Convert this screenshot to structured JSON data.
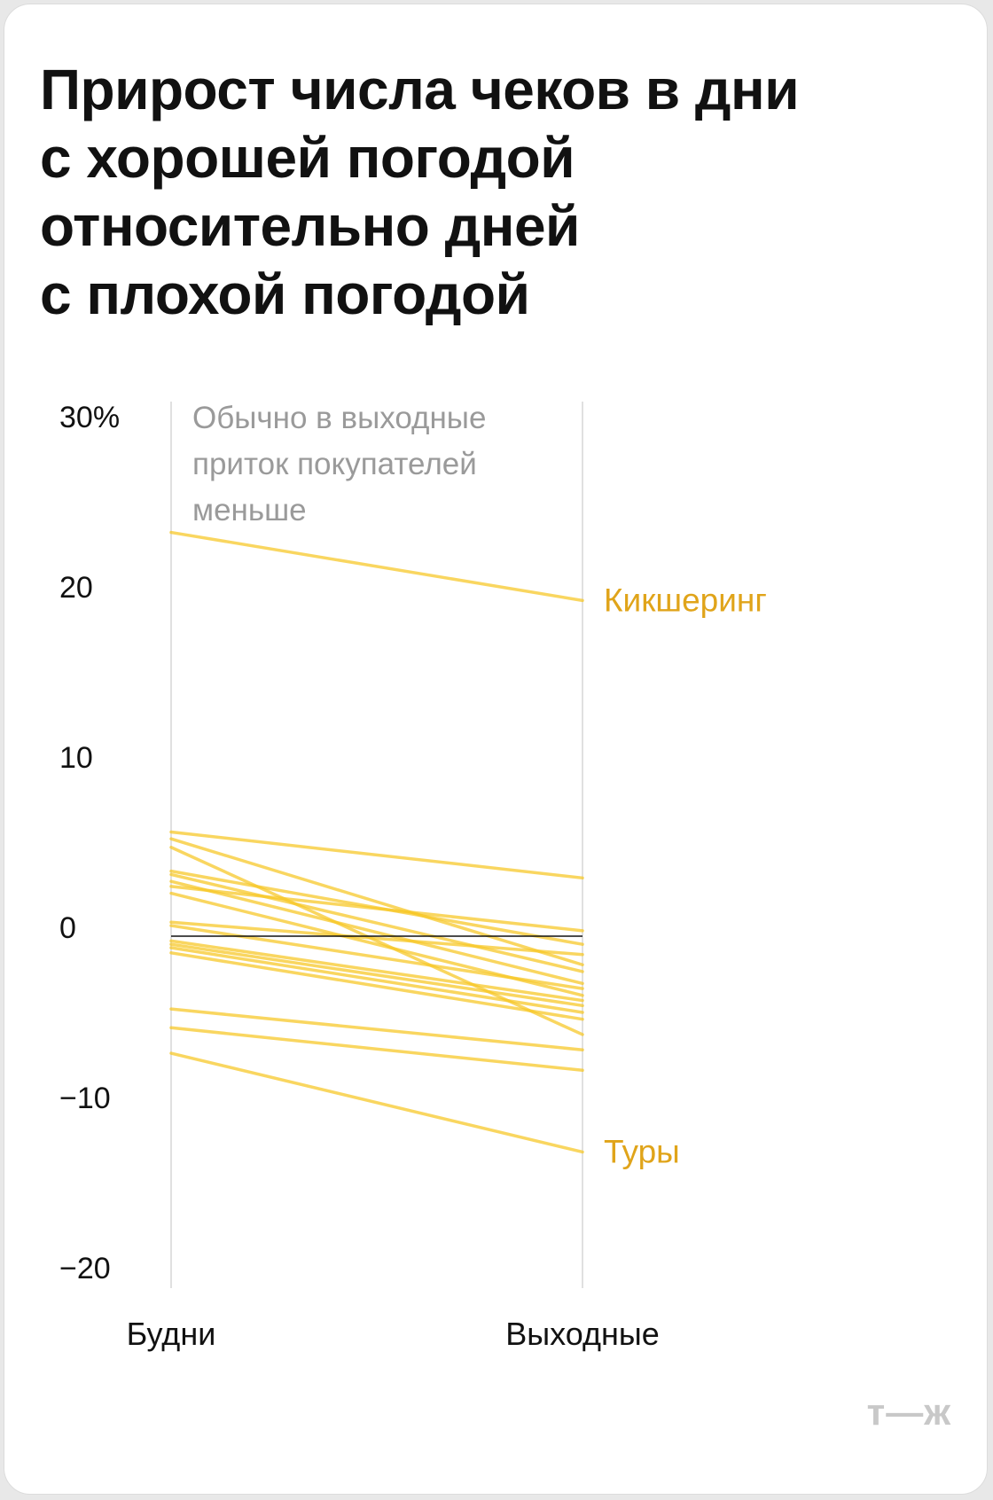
{
  "title_lines": [
    "Прирост числа чеков в дни",
    "с хорошей погодой",
    "относительно дней",
    "с плохой погодой"
  ],
  "logo": "т—ж",
  "colors": {
    "line": "#f7c623",
    "highlight_label": "#e0a41a",
    "axis_text": "#111111",
    "annotation": "#9a9a9a",
    "gridline": "#d6d6d6",
    "zero_line": "#111111"
  },
  "chart_data": {
    "type": "line",
    "title": "Прирост числа чеков в дни с хорошей погодой относительно дней с плохой погодой",
    "categories": [
      "Будни",
      "Выходные"
    ],
    "ylim": [
      -20,
      30
    ],
    "yticks": [
      {
        "value": 30,
        "label": "30%"
      },
      {
        "value": 20,
        "label": "20"
      },
      {
        "value": 10,
        "label": "10"
      },
      {
        "value": 0,
        "label": "0"
      },
      {
        "value": -10,
        "label": "−10"
      },
      {
        "value": -20,
        "label": "−20"
      }
    ],
    "annotation": [
      "Обычно в выходные",
      "приток покупателей",
      "меньше"
    ],
    "series": [
      {
        "name": "Кикшеринг",
        "values": [
          23.2,
          19.2
        ]
      },
      {
        "name": "",
        "values": [
          5.6,
          2.9
        ]
      },
      {
        "name": "",
        "values": [
          5.2,
          -2.2
        ]
      },
      {
        "name": "",
        "values": [
          4.7,
          -6.3
        ]
      },
      {
        "name": "",
        "values": [
          3.3,
          -1.0
        ]
      },
      {
        "name": "",
        "values": [
          3.1,
          -2.6
        ]
      },
      {
        "name": "",
        "values": [
          2.7,
          -3.3
        ]
      },
      {
        "name": "",
        "values": [
          2.4,
          -0.2
        ]
      },
      {
        "name": "",
        "values": [
          2.0,
          -4.0
        ]
      },
      {
        "name": "",
        "values": [
          0.3,
          -1.6
        ]
      },
      {
        "name": "",
        "values": [
          0.1,
          -3.6
        ]
      },
      {
        "name": "",
        "values": [
          -0.8,
          -4.3
        ]
      },
      {
        "name": "",
        "values": [
          -1.0,
          -4.6
        ]
      },
      {
        "name": "",
        "values": [
          -1.2,
          -5.0
        ]
      },
      {
        "name": "",
        "values": [
          -1.5,
          -5.4
        ]
      },
      {
        "name": "",
        "values": [
          -4.8,
          -7.2
        ]
      },
      {
        "name": "",
        "values": [
          -5.9,
          -8.4
        ]
      },
      {
        "name": "Туры",
        "values": [
          -7.4,
          -13.2
        ]
      }
    ]
  }
}
